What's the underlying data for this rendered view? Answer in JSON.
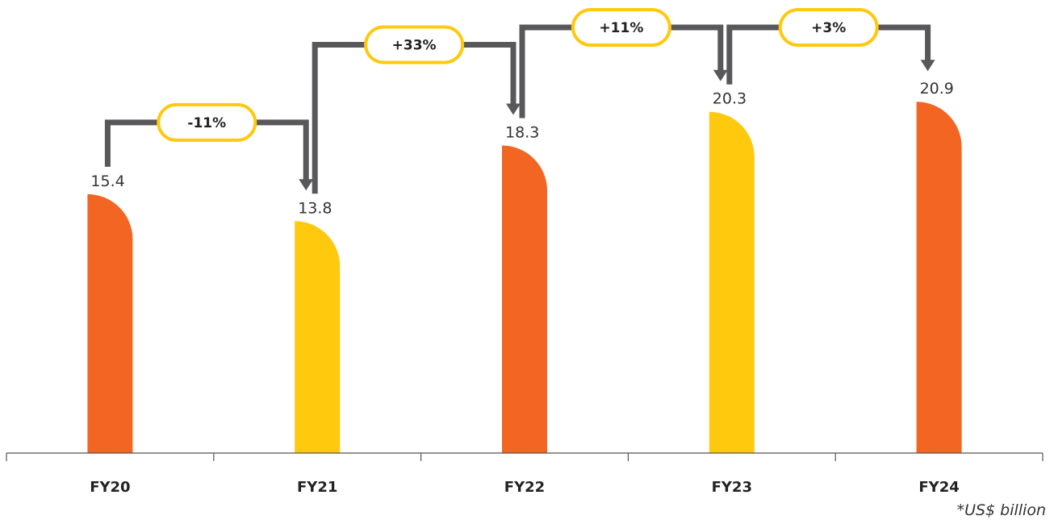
{
  "chart_data": {
    "type": "bar",
    "categories": [
      "FY20",
      "FY21",
      "FY22",
      "FY23",
      "FY24"
    ],
    "values": [
      15.4,
      13.8,
      18.3,
      20.3,
      20.9
    ],
    "value_labels": [
      "15.4",
      "13.8",
      "18.3",
      "20.3",
      "20.9"
    ],
    "bar_colors": [
      "#F26522",
      "#FFC90E",
      "#F26522",
      "#FFC90E",
      "#F26522"
    ],
    "changes": [
      "-11%",
      "+33%",
      "+11%",
      "+3%"
    ],
    "change_pill_color": "#FFC90E",
    "connector_color": "#58585A",
    "ylim": [
      0,
      28
    ],
    "grid": false,
    "footnote": "*US$ billion"
  }
}
